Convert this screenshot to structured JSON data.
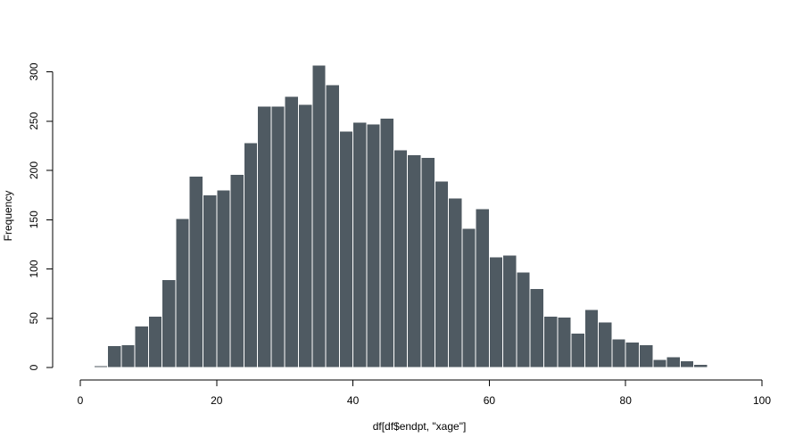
{
  "chart_data": {
    "type": "bar",
    "title": "",
    "xlabel": "df[df$endpt, \"xage\"]",
    "ylabel": "Frequency",
    "xlim": [
      0,
      100
    ],
    "ylim": [
      0,
      300
    ],
    "x_ticks": [
      "0",
      "20",
      "40",
      "60",
      "80",
      "100"
    ],
    "y_ticks": [
      "0",
      "50",
      "100",
      "150",
      "200",
      "250",
      "300"
    ],
    "bin_width": 2,
    "bin_start": 0,
    "bar_color": "#4f5a62",
    "bar_edge_color": "#ffffff",
    "grid": false,
    "values": [
      1,
      2,
      22,
      23,
      42,
      52,
      89,
      151,
      194,
      175,
      180,
      196,
      228,
      265,
      265,
      275,
      267,
      307,
      287,
      240,
      249,
      247,
      253,
      221,
      216,
      213,
      189,
      172,
      141,
      161,
      112,
      114,
      97,
      80,
      52,
      51,
      35,
      59,
      46,
      29,
      26,
      23,
      8,
      11,
      7,
      3,
      0,
      0,
      1
    ]
  }
}
